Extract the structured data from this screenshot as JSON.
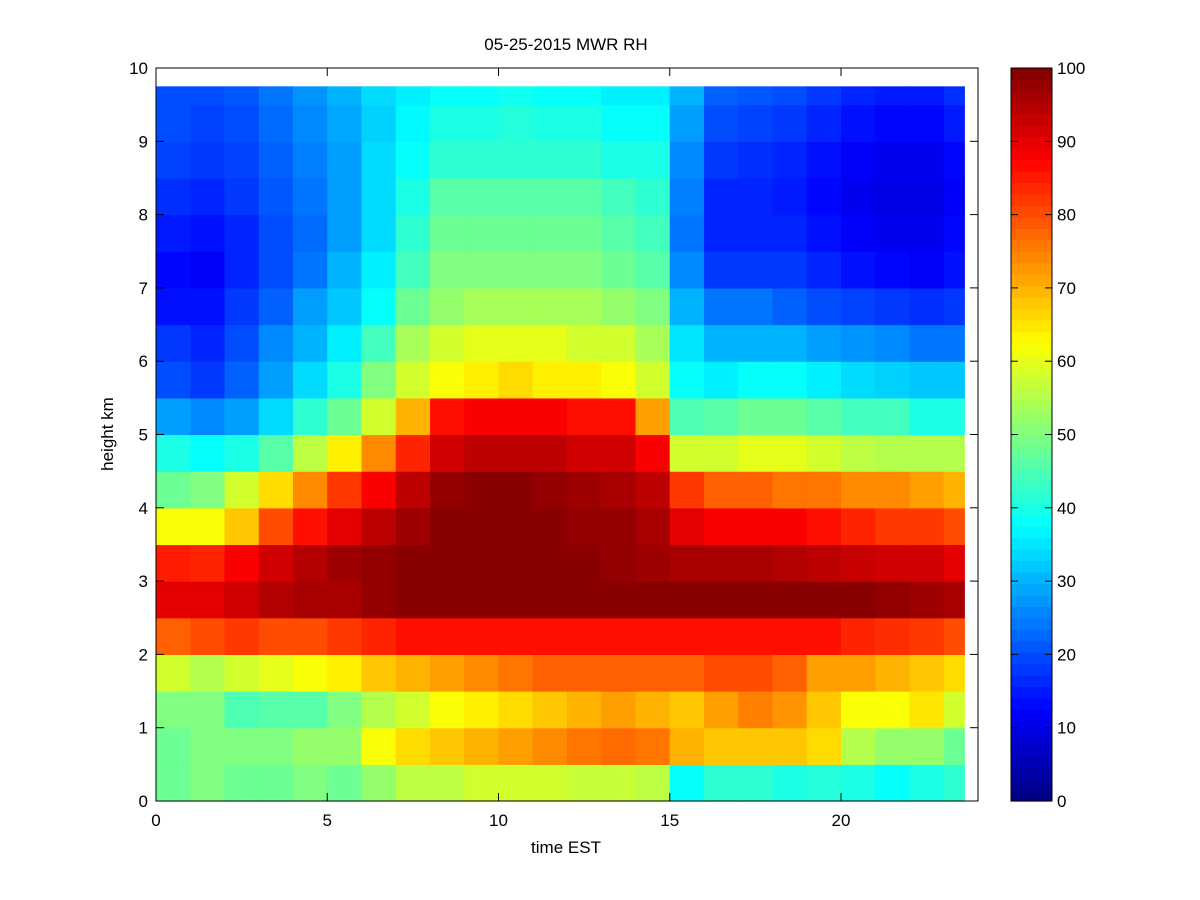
{
  "chart_data": {
    "type": "heatmap",
    "title": "05-25-2015 MWR RH",
    "xlabel": "time EST",
    "ylabel": "height km",
    "xlim": [
      0,
      24
    ],
    "ylim": [
      0,
      10
    ],
    "xticks": [
      0,
      5,
      10,
      15,
      20
    ],
    "xtick_labels": [
      "0",
      "5",
      "10",
      "15",
      "20"
    ],
    "yticks": [
      0,
      1,
      2,
      3,
      4,
      5,
      6,
      7,
      8,
      9,
      10
    ],
    "ytick_labels": [
      "0",
      "1",
      "2",
      "3",
      "4",
      "5",
      "6",
      "7",
      "8",
      "9",
      "10"
    ],
    "colorbar": {
      "colormap": "jet",
      "min": 0,
      "max": 100,
      "ticks": [
        0,
        10,
        20,
        30,
        40,
        50,
        60,
        70,
        80,
        90,
        100
      ],
      "tick_labels": [
        "0",
        "10",
        "20",
        "30",
        "40",
        "50",
        "60",
        "70",
        "80",
        "90",
        "100"
      ]
    },
    "times": [
      0,
      1,
      2,
      3,
      4,
      5,
      6,
      7,
      8,
      9,
      10,
      11,
      12,
      13,
      14,
      15,
      16,
      17,
      18,
      19,
      20,
      21,
      22,
      23
    ],
    "heights": [
      0.0,
      0.5,
      1.0,
      1.5,
      2.0,
      2.5,
      3.0,
      3.5,
      4.0,
      4.5,
      5.0,
      5.5,
      6.0,
      6.5,
      7.0,
      7.5,
      8.0,
      8.5,
      9.0,
      9.5
    ],
    "rh_profiles_note_units": "%",
    "rh": [
      [
        48,
        50,
        48,
        48,
        50,
        48,
        52,
        56,
        56,
        58,
        58,
        58,
        57,
        57,
        56,
        38,
        42,
        42,
        40,
        41,
        40,
        38,
        40,
        42
      ],
      [
        48,
        50,
        50,
        50,
        52,
        52,
        62,
        66,
        68,
        70,
        72,
        74,
        76,
        77,
        76,
        70,
        68,
        68,
        68,
        66,
        55,
        52,
        52,
        48
      ],
      [
        50,
        50,
        45,
        46,
        46,
        50,
        55,
        58,
        62,
        64,
        66,
        68,
        70,
        72,
        70,
        68,
        72,
        75,
        73,
        68,
        62,
        62,
        65,
        58
      ],
      [
        58,
        55,
        58,
        60,
        62,
        64,
        68,
        70,
        72,
        74,
        76,
        78,
        78,
        78,
        78,
        78,
        80,
        80,
        78,
        72,
        72,
        70,
        68,
        66
      ],
      [
        78,
        80,
        82,
        80,
        80,
        82,
        84,
        86,
        86,
        86,
        86,
        86,
        86,
        86,
        86,
        86,
        86,
        86,
        86,
        86,
        84,
        83,
        82,
        80
      ],
      [
        90,
        90,
        92,
        95,
        96,
        96,
        98,
        99,
        99,
        99,
        99,
        99,
        99,
        99,
        99,
        99,
        99,
        99,
        99,
        99,
        99,
        98,
        97,
        96
      ],
      [
        85,
        84,
        88,
        92,
        95,
        97,
        98,
        99,
        99,
        99,
        99,
        99,
        99,
        98,
        97,
        96,
        96,
        96,
        95,
        94,
        93,
        92,
        92,
        90
      ],
      [
        62,
        62,
        68,
        80,
        86,
        90,
        94,
        97,
        99,
        99,
        99,
        99,
        98,
        98,
        96,
        90,
        88,
        88,
        88,
        86,
        84,
        82,
        82,
        80
      ],
      [
        48,
        50,
        58,
        66,
        74,
        82,
        88,
        94,
        98,
        99,
        99,
        98,
        97,
        96,
        94,
        82,
        78,
        78,
        76,
        76,
        74,
        74,
        72,
        70
      ],
      [
        40,
        38,
        40,
        46,
        56,
        64,
        74,
        84,
        92,
        94,
        94,
        94,
        92,
        92,
        88,
        58,
        58,
        60,
        60,
        58,
        56,
        55,
        55,
        55
      ],
      [
        28,
        26,
        28,
        34,
        42,
        48,
        58,
        70,
        86,
        88,
        88,
        88,
        86,
        86,
        72,
        45,
        46,
        48,
        48,
        46,
        44,
        44,
        40,
        40
      ],
      [
        20,
        18,
        22,
        28,
        34,
        40,
        50,
        58,
        62,
        64,
        66,
        64,
        64,
        62,
        58,
        38,
        36,
        38,
        38,
        36,
        34,
        33,
        32,
        32
      ],
      [
        18,
        16,
        20,
        26,
        30,
        36,
        44,
        54,
        58,
        60,
        60,
        60,
        58,
        58,
        54,
        35,
        30,
        30,
        30,
        28,
        27,
        26,
        24,
        24
      ],
      [
        14,
        14,
        18,
        22,
        28,
        32,
        38,
        48,
        52,
        54,
        54,
        54,
        54,
        52,
        50,
        30,
        24,
        24,
        22,
        20,
        19,
        18,
        17,
        18
      ],
      [
        13,
        12,
        16,
        20,
        24,
        30,
        36,
        44,
        50,
        50,
        50,
        50,
        50,
        48,
        46,
        26,
        18,
        18,
        18,
        16,
        14,
        13,
        12,
        14
      ],
      [
        15,
        14,
        16,
        20,
        23,
        28,
        34,
        42,
        48,
        48,
        48,
        48,
        48,
        46,
        44,
        24,
        16,
        16,
        16,
        14,
        12,
        11,
        11,
        13
      ],
      [
        17,
        16,
        18,
        21,
        24,
        28,
        34,
        40,
        46,
        46,
        46,
        46,
        46,
        44,
        42,
        25,
        16,
        16,
        15,
        13,
        11,
        10,
        10,
        12
      ],
      [
        19,
        18,
        19,
        22,
        25,
        28,
        34,
        38,
        42,
        42,
        42,
        42,
        42,
        40,
        40,
        26,
        18,
        17,
        16,
        14,
        12,
        11,
        11,
        13
      ],
      [
        20,
        19,
        20,
        23,
        26,
        29,
        33,
        37,
        40,
        40,
        41,
        40,
        40,
        38,
        38,
        28,
        20,
        19,
        18,
        16,
        14,
        13,
        13,
        15
      ],
      [
        20,
        20,
        21,
        24,
        27,
        30,
        34,
        36,
        38,
        38,
        39,
        38,
        38,
        36,
        36,
        30,
        22,
        21,
        20,
        18,
        16,
        15,
        15,
        17
      ]
    ]
  }
}
